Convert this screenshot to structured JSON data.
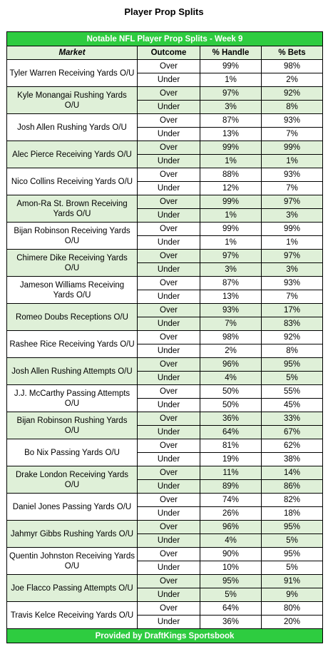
{
  "page_title": "Player Prop Splits",
  "table_title": "Notable NFL Player Prop Splits - Week 9",
  "columns": [
    "Market",
    "Outcome",
    "% Handle",
    "% Bets"
  ],
  "footer": "Provided by DraftKings Sportsbook",
  "colors": {
    "title_bar": "#2ecc40",
    "alt_row": "#dff0d8"
  },
  "rows": [
    {
      "market": "Tyler Warren Receiving Yards O/U",
      "over": [
        "99%",
        "98%"
      ],
      "under": [
        "1%",
        "2%"
      ]
    },
    {
      "market": "Kyle Monangai Rushing Yards O/U",
      "over": [
        "97%",
        "92%"
      ],
      "under": [
        "3%",
        "8%"
      ]
    },
    {
      "market": "Josh Allen Rushing Yards O/U",
      "over": [
        "87%",
        "93%"
      ],
      "under": [
        "13%",
        "7%"
      ]
    },
    {
      "market": "Alec Pierce Receiving Yards O/U",
      "over": [
        "99%",
        "99%"
      ],
      "under": [
        "1%",
        "1%"
      ]
    },
    {
      "market": "Nico Collins Receiving Yards O/U",
      "over": [
        "88%",
        "93%"
      ],
      "under": [
        "12%",
        "7%"
      ]
    },
    {
      "market": "Amon-Ra St. Brown Receiving Yards O/U",
      "over": [
        "99%",
        "97%"
      ],
      "under": [
        "1%",
        "3%"
      ]
    },
    {
      "market": "Bijan Robinson Receiving Yards O/U",
      "over": [
        "99%",
        "99%"
      ],
      "under": [
        "1%",
        "1%"
      ]
    },
    {
      "market": "Chimere Dike Receiving Yards O/U",
      "over": [
        "97%",
        "97%"
      ],
      "under": [
        "3%",
        "3%"
      ]
    },
    {
      "market": "Jameson Williams Receiving Yards O/U",
      "over": [
        "87%",
        "93%"
      ],
      "under": [
        "13%",
        "7%"
      ]
    },
    {
      "market": "Romeo Doubs Receptions O/U",
      "over": [
        "93%",
        "17%"
      ],
      "under": [
        "7%",
        "83%"
      ]
    },
    {
      "market": "Rashee Rice Receiving Yards O/U",
      "over": [
        "98%",
        "92%"
      ],
      "under": [
        "2%",
        "8%"
      ]
    },
    {
      "market": "Josh Allen Rushing Attempts O/U",
      "over": [
        "96%",
        "95%"
      ],
      "under": [
        "4%",
        "5%"
      ]
    },
    {
      "market": "J.J. McCarthy Passing Attempts O/U",
      "over": [
        "50%",
        "55%"
      ],
      "under": [
        "50%",
        "45%"
      ]
    },
    {
      "market": "Bijan Robinson Rushing Yards O/U",
      "over": [
        "36%",
        "33%"
      ],
      "under": [
        "64%",
        "67%"
      ]
    },
    {
      "market": "Bo Nix Passing Yards O/U",
      "over": [
        "81%",
        "62%"
      ],
      "under": [
        "19%",
        "38%"
      ]
    },
    {
      "market": "Drake London Receiving Yards O/U",
      "over": [
        "11%",
        "14%"
      ],
      "under": [
        "89%",
        "86%"
      ]
    },
    {
      "market": "Daniel Jones Passing Yards O/U",
      "over": [
        "74%",
        "82%"
      ],
      "under": [
        "26%",
        "18%"
      ]
    },
    {
      "market": "Jahmyr Gibbs Rushing Yards O/U",
      "over": [
        "96%",
        "95%"
      ],
      "under": [
        "4%",
        "5%"
      ]
    },
    {
      "market": "Quentin Johnston Receiving Yards O/U",
      "over": [
        "90%",
        "95%"
      ],
      "under": [
        "10%",
        "5%"
      ]
    },
    {
      "market": "Joe Flacco Passing Attempts O/U",
      "over": [
        "95%",
        "91%"
      ],
      "under": [
        "5%",
        "9%"
      ]
    },
    {
      "market": "Travis Kelce Receiving Yards O/U",
      "over": [
        "64%",
        "80%"
      ],
      "under": [
        "36%",
        "20%"
      ]
    }
  ],
  "outcomes": {
    "over": "Over",
    "under": "Under"
  }
}
